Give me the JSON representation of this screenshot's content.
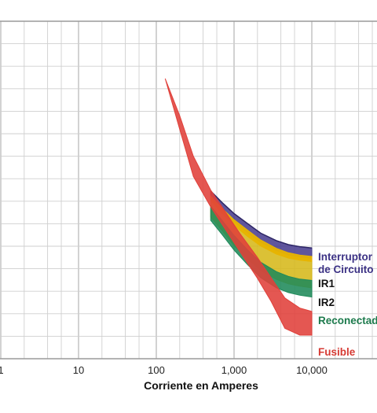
{
  "chart_data": {
    "type": "area",
    "xlabel": "Corriente en Amperes",
    "xscale": "log",
    "xlim": [
      1,
      100000
    ],
    "x_ticks": [
      "1",
      "10",
      "100",
      "1,000",
      "10,000",
      "10"
    ],
    "grid": true,
    "series": [
      {
        "name": "Interruptor de Circuito",
        "color": "#4a3f8f",
        "x": [
          500,
          700,
          1000,
          1500,
          2200,
          3500,
          5000,
          7000,
          10000
        ],
        "lower": [
          0.47,
          0.435,
          0.4,
          0.368,
          0.338,
          0.313,
          0.3,
          0.293,
          0.288
        ],
        "upper": [
          0.497,
          0.463,
          0.43,
          0.4,
          0.372,
          0.35,
          0.338,
          0.332,
          0.328
        ]
      },
      {
        "name": "IR1",
        "color": "#e8b400",
        "x": [
          500,
          700,
          1000,
          1500,
          2200,
          3500,
          5000,
          7000,
          10000
        ],
        "lower": [
          0.47,
          0.43,
          0.395,
          0.362,
          0.334,
          0.31,
          0.298,
          0.292,
          0.288
        ],
        "upper": [
          0.482,
          0.446,
          0.412,
          0.381,
          0.352,
          0.327,
          0.314,
          0.307,
          0.303
        ]
      },
      {
        "name": "IR2",
        "color": "#d6b81a",
        "x": [
          500,
          700,
          1000,
          1500,
          2200,
          3500,
          5000,
          7000,
          10000
        ],
        "lower": [
          0.42,
          0.38,
          0.335,
          0.295,
          0.262,
          0.235,
          0.222,
          0.215,
          0.21
        ],
        "upper": [
          0.475,
          0.437,
          0.403,
          0.37,
          0.342,
          0.318,
          0.305,
          0.299,
          0.295
        ]
      },
      {
        "name": "Reconectador",
        "color": "#1f8a5a",
        "x": [
          500,
          700,
          1000,
          1500,
          2200,
          3500,
          5000,
          7000,
          10000
        ],
        "lower": [
          0.41,
          0.368,
          0.322,
          0.278,
          0.24,
          0.21,
          0.196,
          0.188,
          0.183
        ],
        "upper": [
          0.452,
          0.41,
          0.365,
          0.322,
          0.286,
          0.258,
          0.244,
          0.236,
          0.232
        ]
      },
      {
        "name": "Fusible",
        "color": "#e0403a",
        "x": [
          130,
          200,
          300,
          500,
          800,
          1200,
          2000,
          3000,
          4500,
          7000,
          10000
        ],
        "lower": [
          0.83,
          0.68,
          0.54,
          0.45,
          0.378,
          0.316,
          0.238,
          0.17,
          0.09,
          0.07,
          0.07
        ],
        "upper": [
          0.83,
          0.72,
          0.6,
          0.5,
          0.43,
          0.37,
          0.3,
          0.24,
          0.18,
          0.15,
          0.14
        ]
      }
    ]
  }
}
